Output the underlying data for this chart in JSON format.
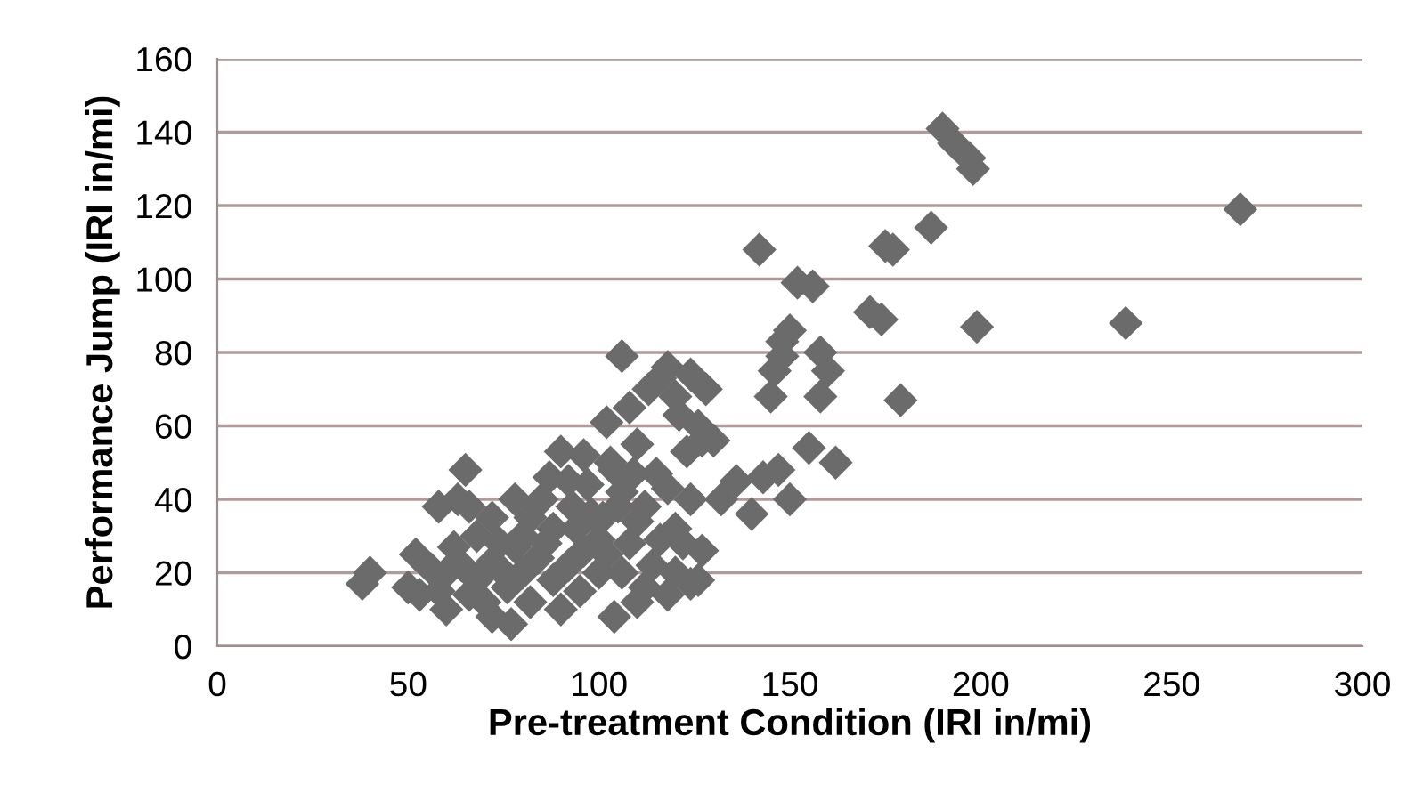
{
  "chart_data": {
    "type": "scatter",
    "xlabel": "Pre-treatment Condition (IRI in/mi)",
    "ylabel": "Performance Jump (IRI in/mi)",
    "xlim": [
      0,
      300
    ],
    "xticks": [
      0,
      50,
      100,
      150,
      200,
      250,
      300
    ],
    "ylim": [
      0,
      160
    ],
    "yticks": [
      0,
      20,
      40,
      60,
      80,
      100,
      120,
      140,
      160
    ],
    "grid": "y",
    "marker": "diamond",
    "legend": false,
    "series": [
      {
        "color": "#6b6b6b",
        "x": [
          268,
          238,
          199,
          190,
          193,
          197,
          198,
          187,
          175,
          177,
          179,
          171,
          174,
          160,
          158,
          162,
          156,
          152,
          158,
          148,
          146,
          145,
          150,
          148,
          142,
          150,
          147,
          143,
          140,
          136,
          155,
          127,
          123,
          121,
          120,
          118,
          116,
          113,
          108,
          106,
          102,
          104,
          110,
          106,
          101,
          100,
          97,
          93,
          90,
          87,
          85,
          80,
          78,
          75,
          72,
          70,
          68,
          65,
          63,
          58,
          56,
          53,
          52,
          50,
          40,
          38,
          60,
          62,
          66,
          72,
          77,
          82,
          90,
          95,
          104,
          110,
          114,
          116,
          120,
          124,
          127,
          124,
          118,
          115,
          112,
          108,
          102,
          96,
          92,
          88,
          84,
          80,
          76,
          72,
          68,
          64,
          60,
          58,
          82,
          86,
          94,
          98,
          105,
          110,
          120,
          126,
          128,
          124,
          130,
          132,
          100,
          106,
          112,
          118,
          88,
          74,
          66,
          78,
          92,
          96,
          103,
          109,
          126,
          122
        ],
        "values": [
          119,
          88,
          87,
          141,
          137,
          133,
          130,
          114,
          109,
          108,
          67,
          91,
          89,
          75,
          80,
          50,
          98,
          99,
          68,
          79,
          75,
          68,
          86,
          83,
          108,
          40,
          48,
          46,
          36,
          45,
          54,
          56,
          53,
          63,
          68,
          76,
          73,
          70,
          65,
          79,
          61,
          48,
          55,
          42,
          35,
          29,
          44,
          38,
          53,
          46,
          40,
          30,
          27,
          20,
          23,
          12,
          18,
          48,
          40,
          38,
          21,
          14,
          25,
          16,
          20,
          17,
          10,
          27,
          14,
          8,
          6,
          12,
          10,
          15,
          8,
          12,
          22,
          29,
          20,
          17,
          26,
          40,
          43,
          47,
          38,
          28,
          25,
          26,
          22,
          18,
          24,
          20,
          16,
          35,
          30,
          22,
          20,
          15,
          35,
          28,
          32,
          36,
          38,
          34,
          32,
          60,
          70,
          74,
          56,
          40,
          20,
          20,
          16,
          14,
          32,
          28,
          38,
          40,
          45,
          52,
          50,
          47,
          18,
          28
        ]
      }
    ]
  }
}
